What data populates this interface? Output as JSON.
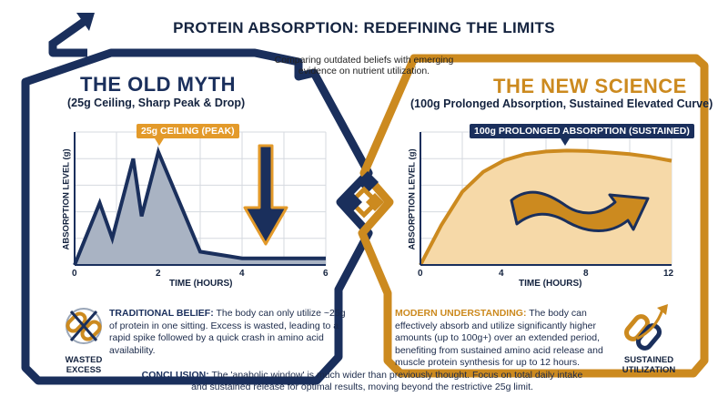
{
  "title": "PROTEIN ABSORPTION: REDEFINING THE LIMITS",
  "subtitle_line1": "Comparing outdated beliefs with emerging",
  "subtitle_line2": "evidence on nutrient utilization.",
  "colors": {
    "navy": "#1a2f5c",
    "gold": "#cc8a1f",
    "myth_fill": "#a9b3c3",
    "science_fill": "#f6d9a8",
    "grid": "#d5d9df"
  },
  "old_myth": {
    "title": "THE OLD MYTH",
    "subtitle": "(25g Ceiling, Sharp Peak & Drop)",
    "callout": "25g CEILING (PEAK)",
    "body_lead": "TRADITIONAL BELIEF:",
    "body_text": " The body can only utilize ~25g of protein in one sitting. Excess is wasted, leading to a rapid spike followed by a quick crash in amino acid availability.",
    "icon": "broken-chain-icon",
    "icon_label_line1": "WASTED",
    "icon_label_line2": "EXCESS"
  },
  "new_science": {
    "title": "THE NEW SCIENCE",
    "subtitle": "(100g Prolonged Absorption, Sustained Elevated Curve)",
    "callout": "100g PROLONGED ABSORPTION (SUSTAINED)",
    "body_lead": "MODERN UNDERSTANDING:",
    "body_text": " The body can effectively absorb and utilize significantly higher amounts (up to 100g+) over an extended period, benefiting from sustained amino acid release and muscle protein synthesis for up to 12 hours.",
    "icon": "linked-chain-icon",
    "icon_label_line1": "SUSTAINED",
    "icon_label_line2": "UTILIZATION"
  },
  "conclusion_lead": "CONCLUSION:",
  "conclusion_text": " The 'anabolic window' is much wider than previously thought. Focus on total daily intake and sustained release for optimal results, moving beyond the restrictive 25g limit.",
  "chart_data": [
    {
      "type": "area",
      "xlabel": "TIME (HOURS)",
      "ylabel": "ABSORPTION LEVEL (g)",
      "x_ticks": [
        "0",
        "2",
        "4",
        "6"
      ],
      "xlim": [
        0,
        6
      ],
      "ylim": [
        0,
        30
      ],
      "x": [
        0,
        0.6,
        0.9,
        1.4,
        1.6,
        2.0,
        3.0,
        4.0,
        6.0
      ],
      "y": [
        0,
        14,
        6,
        24,
        11,
        25.5,
        3,
        1.5,
        1.5
      ],
      "grid": true
    },
    {
      "type": "area",
      "xlabel": "TIME (HOURS)",
      "ylabel": "ABSORPTION LEVEL (g)",
      "x_ticks": [
        "0",
        "4",
        "8",
        "12"
      ],
      "xlim": [
        0,
        12
      ],
      "ylim": [
        0,
        30
      ],
      "x": [
        0,
        1,
        2,
        3,
        4,
        5,
        6,
        7,
        8,
        9,
        10,
        11,
        12
      ],
      "y": [
        0,
        9,
        16.5,
        21,
        23.6,
        25,
        25.6,
        25.8,
        25.7,
        25.4,
        25,
        24.4,
        23.5
      ],
      "grid": true
    }
  ]
}
